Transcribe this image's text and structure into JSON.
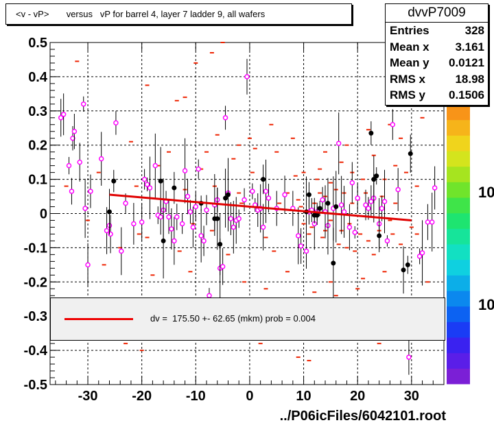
{
  "title": "<v - vP>       versus   vP for barrel 4, layer 7 ladder 9, all wafers",
  "footer": "../P06icFiles/6042101.root",
  "stats": {
    "name": "dvvP7009",
    "rows": [
      {
        "key": "Entries",
        "value": "328"
      },
      {
        "key": "Mean x",
        "value": "3.161"
      },
      {
        "key": "Mean y",
        "value": "0.0121"
      },
      {
        "key": "RMS x",
        "value": "18.98"
      },
      {
        "key": "RMS y",
        "value": "0.1506"
      }
    ]
  },
  "legend": {
    "text": "dv =  175.50 +- 62.65 (mkm) prob = 0.004",
    "line_color": "#e00000"
  },
  "z_tick_labels": [
    "10",
    "10"
  ],
  "chart_data": {
    "type": "scatter",
    "xlim": [
      -37,
      36
    ],
    "ylim": [
      -0.5,
      0.5
    ],
    "x_ticks": [
      -30,
      -20,
      -10,
      0,
      10,
      20,
      30
    ],
    "y_ticks": [
      -0.5,
      -0.4,
      -0.3,
      -0.2,
      -0.1,
      0,
      0.1,
      0.2,
      0.3,
      0.4,
      0.5
    ],
    "grid": true,
    "fit_line": {
      "x": [
        -26,
        30
      ],
      "y": [
        0.055,
        -0.02
      ],
      "color": "#e00000"
    },
    "magenta_points": [
      [
        -35,
        0.28
      ],
      [
        -34.5,
        0.29
      ],
      [
        -33.5,
        0.14
      ],
      [
        -32.8,
        0.22
      ],
      [
        -32.5,
        0.24
      ],
      [
        -31.5,
        0.15
      ],
      [
        -30.8,
        0.32
      ],
      [
        -30.5,
        0.015
      ],
      [
        -30,
        -0.15
      ],
      [
        -29.5,
        0.065
      ],
      [
        -33,
        0.065
      ],
      [
        -27.5,
        0.16
      ],
      [
        -26.5,
        -0.05
      ],
      [
        -26,
        -0.035
      ],
      [
        -25.8,
        -0.06
      ],
      [
        -24.8,
        0.265
      ],
      [
        -23.8,
        -0.11
      ],
      [
        -23,
        0.03
      ],
      [
        -21.5,
        -0.03
      ],
      [
        -20,
        -0.025
      ],
      [
        -19.5,
        0.1
      ],
      [
        -19,
        0.085
      ],
      [
        -18.5,
        0.075
      ],
      [
        -17.5,
        0.14
      ],
      [
        -17,
        -0.005
      ],
      [
        -16.5,
        -0.01
      ],
      [
        -16,
        0.01
      ],
      [
        -15.5,
        0.035
      ],
      [
        -15,
        -0.01
      ],
      [
        -14.5,
        -0.045
      ],
      [
        -14,
        -0.08
      ],
      [
        -13.5,
        -0.01
      ],
      [
        -12.5,
        -0.03
      ],
      [
        -12,
        0.125
      ],
      [
        -11.5,
        0.05
      ],
      [
        -11,
        0.005
      ],
      [
        -10.5,
        -0.04
      ],
      [
        -10,
        0.02
      ],
      [
        -9.5,
        0.13
      ],
      [
        -9,
        -0.065
      ],
      [
        -8.5,
        -0.08
      ],
      [
        -8,
        0.01
      ],
      [
        -7.5,
        -0.24
      ],
      [
        -6.5,
        0.025
      ],
      [
        -6,
        0.04
      ],
      [
        -5.5,
        -0.16
      ],
      [
        -5,
        -0.155
      ],
      [
        -4.5,
        0.28
      ],
      [
        -4,
        0.06
      ],
      [
        -3.5,
        -0.015
      ],
      [
        -3,
        -0.04
      ],
      [
        -2.5,
        -0.02
      ],
      [
        -2,
        -0.015
      ],
      [
        -1,
        0.04
      ],
      [
        -0.5,
        0.4
      ],
      [
        0.5,
        0.065
      ],
      [
        1,
        0.025
      ],
      [
        1.5,
        0.01
      ],
      [
        2,
        0.015
      ],
      [
        2.5,
        -0.04
      ],
      [
        3,
        0.065
      ],
      [
        3.5,
        0.045
      ],
      [
        5,
        0.015
      ],
      [
        6.5,
        0.055
      ],
      [
        8,
        0.015
      ],
      [
        9,
        -0.065
      ],
      [
        9.5,
        -0.095
      ],
      [
        10.5,
        -0.11
      ],
      [
        11,
        0.005
      ],
      [
        11.5,
        0.01
      ],
      [
        12,
        -0.03
      ],
      [
        12.5,
        0.005
      ],
      [
        13.5,
        0.04
      ],
      [
        14,
        0.005
      ],
      [
        14.5,
        -0.035
      ],
      [
        15.5,
        0.015
      ],
      [
        16.5,
        0.205
      ],
      [
        17,
        0.025
      ],
      [
        17.5,
        0.005
      ],
      [
        18.5,
        -0.04
      ],
      [
        19,
        0.09
      ],
      [
        19.5,
        -0.055
      ],
      [
        20,
        0.045
      ],
      [
        21.5,
        0.025
      ],
      [
        22,
        0.015
      ],
      [
        22.5,
        0.035
      ],
      [
        23,
        0.045
      ],
      [
        24,
        -0.03
      ],
      [
        24.5,
        0.015
      ],
      [
        25,
        0.035
      ],
      [
        25.5,
        -0.08
      ],
      [
        26.5,
        0.26
      ],
      [
        27.5,
        0.07
      ],
      [
        29.5,
        -0.42
      ],
      [
        31.5,
        -0.125
      ],
      [
        32,
        -0.115
      ],
      [
        33,
        -0.025
      ],
      [
        33.8,
        -0.025
      ],
      [
        34.3,
        0.075
      ]
    ],
    "black_points": [
      [
        -26,
        0.005
      ],
      [
        -25.2,
        0.095
      ],
      [
        -16.5,
        0.095
      ],
      [
        -16,
        -0.08
      ],
      [
        -14,
        0.075
      ],
      [
        -9,
        0.03
      ],
      [
        -6.5,
        -0.015
      ],
      [
        -6,
        -0.015
      ],
      [
        -5.5,
        -0.09
      ],
      [
        -4.5,
        0.045
      ],
      [
        -4,
        0.055
      ],
      [
        2.5,
        0.1
      ],
      [
        10.5,
        0.005
      ],
      [
        11,
        0.055
      ],
      [
        12,
        -0.005
      ],
      [
        12.5,
        -0.005
      ],
      [
        13,
        0.015
      ],
      [
        14.5,
        0.03
      ],
      [
        15.5,
        -0.145
      ],
      [
        16,
        0.02
      ],
      [
        22.5,
        0.235
      ],
      [
        23,
        0.1
      ],
      [
        23.5,
        0.11
      ],
      [
        24,
        -0.065
      ],
      [
        28.5,
        -0.165
      ],
      [
        29.3,
        -0.15
      ],
      [
        29.8,
        0.175
      ]
    ],
    "red_marks": [
      [
        -32,
        0.445
      ],
      [
        -23,
        -0.38
      ],
      [
        -20,
        -0.4
      ],
      [
        -19,
        0.375
      ],
      [
        -13.5,
        0.33
      ],
      [
        -12,
        0.34
      ],
      [
        -10,
        0.44
      ],
      [
        -7,
        0.47
      ],
      [
        -5,
        0.5
      ],
      [
        -3,
        0.16
      ],
      [
        -2,
        0.2
      ],
      [
        0,
        0.22
      ],
      [
        2,
        -0.38
      ],
      [
        4,
        0.26
      ],
      [
        6,
        -0.25
      ],
      [
        8,
        0.22
      ],
      [
        9,
        -0.42
      ],
      [
        11,
        -0.43
      ],
      [
        14,
        0.18
      ],
      [
        16,
        -0.24
      ],
      [
        18,
        0.2
      ],
      [
        20,
        -0.22
      ],
      [
        22,
        0.245
      ],
      [
        24,
        -0.38
      ],
      [
        26,
        0.26
      ],
      [
        28,
        0.22
      ],
      [
        30,
        -0.25
      ],
      [
        32,
        0.28
      ],
      [
        33,
        -0.2
      ],
      [
        -30,
        -0.02
      ],
      [
        -28,
        0.12
      ],
      [
        -22,
        0.21
      ],
      [
        -18,
        -0.18
      ],
      [
        -15,
        0.18
      ],
      [
        -11,
        -0.17
      ],
      [
        -8,
        0.18
      ],
      [
        -6,
        0.23
      ],
      [
        -1,
        -0.2
      ],
      [
        1,
        0.19
      ],
      [
        3,
        -0.22
      ],
      [
        5,
        0.18
      ],
      [
        7,
        -0.17
      ],
      [
        10,
        0.12
      ],
      [
        12,
        -0.23
      ],
      [
        13,
        0.13
      ],
      [
        15,
        -0.2
      ],
      [
        17,
        0.15
      ],
      [
        19,
        0.12
      ],
      [
        21,
        -0.19
      ],
      [
        23,
        0.17
      ],
      [
        25,
        -0.17
      ],
      [
        27,
        0.14
      ],
      [
        29,
        0.12
      ],
      [
        31,
        -0.06
      ],
      [
        -34,
        0.08
      ],
      [
        -27,
        -0.15
      ],
      [
        -21,
        0.08
      ],
      [
        -17,
        0.14
      ],
      [
        -13,
        -0.11
      ],
      [
        -9,
        0.13
      ],
      [
        -4,
        -0.12
      ],
      [
        0.5,
        0.12
      ],
      [
        4.5,
        -0.11
      ],
      [
        8.5,
        0.11
      ],
      [
        12.5,
        0.1
      ],
      [
        15,
        0.09
      ],
      [
        18,
        -0.1
      ],
      [
        21,
        0.1
      ],
      [
        25,
        0.1
      ],
      [
        28,
        -0.09
      ],
      [
        31,
        0.08
      ],
      [
        -19,
        -0.07
      ],
      [
        -12,
        0.07
      ],
      [
        -7,
        -0.05
      ],
      [
        -2,
        0.06
      ],
      [
        3,
        -0.07
      ],
      [
        7,
        0.06
      ],
      [
        11,
        -0.06
      ],
      [
        14,
        0.05
      ],
      [
        17,
        -0.05
      ],
      [
        20,
        0.04
      ],
      [
        24,
        -0.05
      ],
      [
        27,
        0.03
      ],
      [
        30,
        -0.04
      ],
      [
        11.5,
        -0.04
      ],
      [
        13.5,
        -0.07
      ],
      [
        15,
        -0.02
      ],
      [
        16.5,
        -0.09
      ],
      [
        18.5,
        -0.03
      ],
      [
        19.5,
        -0.11
      ],
      [
        20.5,
        -0.06
      ],
      [
        22,
        -0.08
      ],
      [
        23,
        -0.12
      ],
      [
        26,
        -0.02
      ],
      [
        9.5,
        0.02
      ],
      [
        10,
        -0.03
      ],
      [
        12,
        0.03
      ],
      [
        13,
        0.06
      ],
      [
        14,
        -0.05
      ],
      [
        16,
        0.07
      ],
      [
        17.5,
        0.06
      ],
      [
        19,
        0.03
      ],
      [
        21.5,
        0.06
      ],
      [
        24.5,
        0.05
      ],
      [
        26.5,
        -0.06
      ],
      [
        -24,
        -0.1
      ],
      [
        -20.5,
        -0.06
      ],
      [
        -15,
        0.04
      ],
      [
        -10.5,
        -0.03
      ],
      [
        -6.5,
        0.08
      ],
      [
        -1.5,
        0.03
      ],
      [
        5.5,
        0.03
      ],
      [
        9,
        0.04
      ]
    ]
  }
}
